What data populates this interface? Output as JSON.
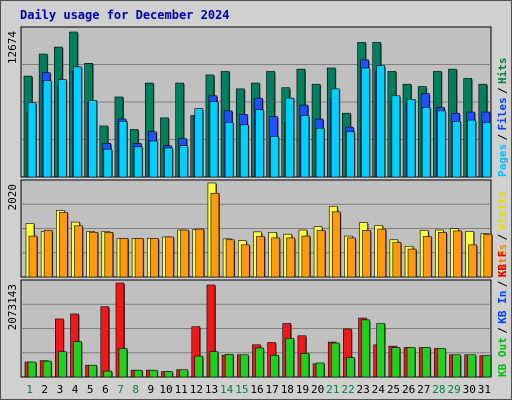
{
  "chart_data": {
    "type": "bar",
    "title": "Daily usage for December 2024",
    "categories": [
      "1",
      "2",
      "3",
      "4",
      "5",
      "6",
      "7",
      "8",
      "9",
      "10",
      "11",
      "12",
      "13",
      "14",
      "15",
      "16",
      "17",
      "18",
      "19",
      "20",
      "21",
      "22",
      "23",
      "24",
      "25",
      "26",
      "27",
      "28",
      "29",
      "30",
      "31"
    ],
    "weekend_day_color": "#008040",
    "weekday_day_color": "#000000",
    "weekend_days": [
      "1",
      "7",
      "8",
      "14",
      "15",
      "21",
      "22",
      "28",
      "29"
    ],
    "panels": [
      {
        "id": "hits-panel",
        "ymax_label": "12674",
        "ymax": 12674,
        "legend": [
          {
            "text": "Hits",
            "color": "#008040"
          },
          {
            "text": "Files",
            "color": "#0040ff"
          },
          {
            "text": "Pages",
            "color": "#00c0ff"
          }
        ],
        "series": [
          {
            "name": "Hits",
            "color": "#00805f",
            "values": [
              8700,
              10600,
              11200,
              12500,
              9800,
              4400,
              6900,
              4100,
              8100,
              5100,
              8100,
              5300,
              8800,
              9100,
              7600,
              8100,
              9100,
              7700,
              9300,
              8000,
              9400,
              5500,
              11600,
              11600,
              9100,
              8000,
              7800,
              9100,
              9300,
              8500,
              8000
            ]
          },
          {
            "name": "Files",
            "color": "#2050ff",
            "values": [
              5600,
              9000,
              7800,
              9200,
              6400,
              2900,
              5000,
              2900,
              3900,
              2700,
              3300,
              5200,
              7000,
              5700,
              5400,
              6800,
              5200,
              4700,
              6200,
              5000,
              6800,
              4300,
              10100,
              9100,
              6600,
              6300,
              7200,
              6000,
              5500,
              5600,
              5600
            ]
          },
          {
            "name": "Pages",
            "color": "#00d0ff",
            "values": [
              6400,
              8300,
              8400,
              9500,
              6600,
              2400,
              4800,
              2600,
              3100,
              2500,
              2700,
              5900,
              6500,
              4700,
              4500,
              5800,
              3500,
              6800,
              5300,
              4200,
              7600,
              3900,
              9400,
              9600,
              7000,
              6700,
              6000,
              5700,
              4800,
              4900,
              4700
            ]
          }
        ]
      },
      {
        "id": "visits-panel",
        "ymax_label": "2020",
        "ymax": 2020,
        "legend": [
          {
            "text": "Visits",
            "color": "#e0e000"
          },
          {
            "text": "Sites",
            "color": "#ff8000"
          }
        ],
        "series": [
          {
            "name": "Visits",
            "color": "#ffff40",
            "values": [
              1150,
              980,
              1430,
              1180,
              980,
              980,
              830,
              830,
              830,
              860,
              1010,
              1020,
              2020,
              820,
              780,
              970,
              960,
              920,
              1010,
              1080,
              1520,
              880,
              1170,
              1110,
              800,
              660,
              1000,
              1010,
              1040,
              980,
              930
            ]
          },
          {
            "name": "Sites",
            "color": "#ff9a10",
            "values": [
              880,
              1000,
              1390,
              1100,
              960,
              960,
              830,
              830,
              830,
              860,
              1010,
              1030,
              1800,
              800,
              690,
              870,
              840,
              840,
              880,
              1000,
              1400,
              840,
              1000,
              1030,
              740,
              600,
              870,
              960,
              990,
              690,
              920
            ]
          }
        ]
      },
      {
        "id": "kbytes-panel",
        "ymax_label": "2073143",
        "ymax": 2073143,
        "legend": [
          {
            "text": "KB F",
            "color": "#e00000"
          },
          {
            "text": "KB In",
            "color": "#0040ff"
          },
          {
            "text": "KB Out",
            "color": "#00c000"
          }
        ],
        "series": [
          {
            "name": "KB F",
            "color": "#f01818",
            "values": [
              330000,
              360000,
              1280000,
              1390000,
              260000,
              1550000,
              2073143,
              150000,
              150000,
              120000,
              160000,
              1110000,
              2030000,
              480000,
              490000,
              710000,
              760000,
              1180000,
              910000,
              290000,
              770000,
              1060000,
              1300000,
              710000,
              680000,
              650000,
              650000,
              630000,
              490000,
              490000,
              470000
            ]
          },
          {
            "name": "KB Out",
            "color": "#20d020",
            "values": [
              330000,
              350000,
              560000,
              780000,
              260000,
              130000,
              630000,
              150000,
              150000,
              120000,
              160000,
              460000,
              560000,
              500000,
              490000,
              640000,
              480000,
              850000,
              520000,
              310000,
              750000,
              430000,
              1260000,
              1180000,
              650000,
              650000,
              650000,
              630000,
              490000,
              490000,
              470000
            ]
          }
        ]
      }
    ]
  }
}
